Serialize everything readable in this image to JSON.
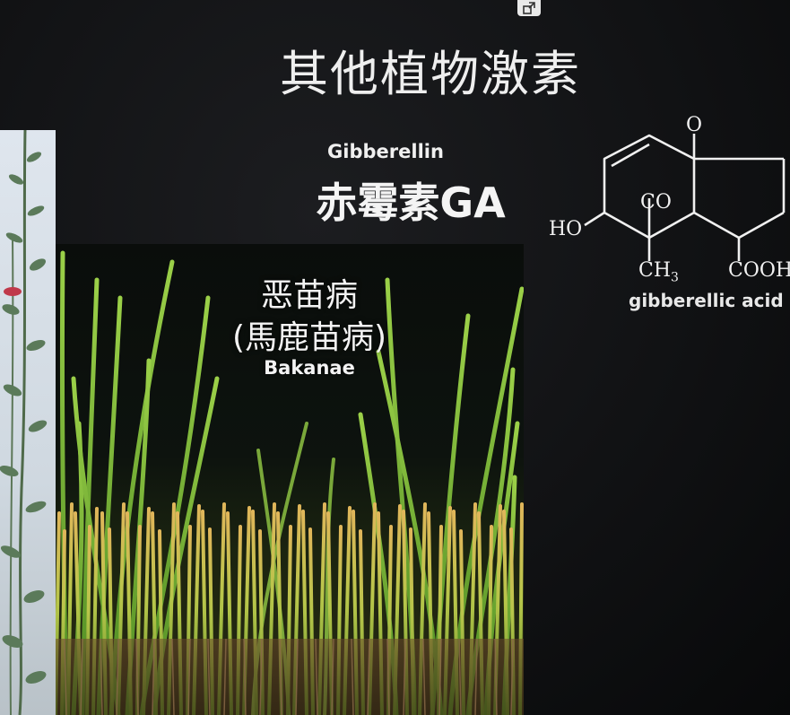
{
  "slide": {
    "title": "其他植物激素",
    "gibberellin_en": "Gibberellin",
    "gibberellin_cn": "赤霉素GA",
    "disease_cn": "恶苗病",
    "disease_alt": "(馬鹿苗病)",
    "disease_en": "Bakanae"
  },
  "molecule": {
    "atom_o_top": "O",
    "atom_co": "CO",
    "atom_ho": "HO",
    "atom_ch3": "CH",
    "atom_ch3_sub": "3",
    "atom_cooh": "COOH",
    "caption": "gibberellic acid (G"
  },
  "colors": {
    "background": "#0b0b0c",
    "text": "#f2f2f2",
    "rice_green": "#7fbf2e",
    "rice_yellow": "#d9b64a"
  }
}
